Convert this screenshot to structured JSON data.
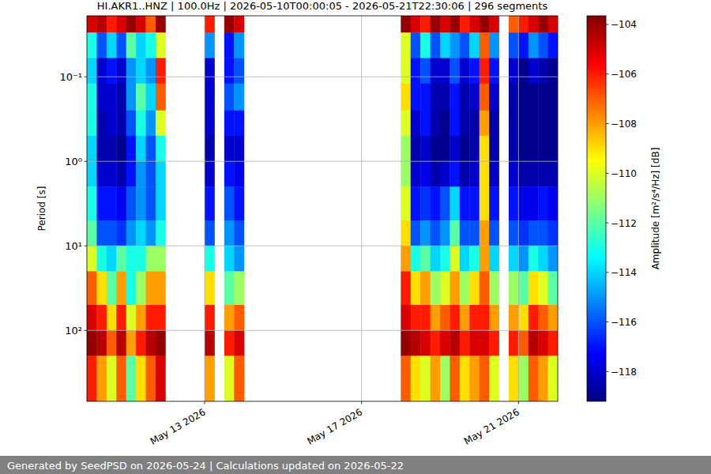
{
  "chart_data": {
    "type": "heatmap",
    "title": "HI.AKR1..HNZ | 100.0Hz | 2026-05-10T00:00:05 - 2026-05-21T22:30:06 | 296 segments",
    "y_label": "Period [s]",
    "x_edges": [
      "2026-05-10T00:00",
      "2026-05-10T06:00",
      "2026-05-10T12:00",
      "2026-05-10T18:00",
      "2026-05-11T00:00",
      "2026-05-11T06:00",
      "2026-05-11T12:00",
      "2026-05-11T18:00",
      "2026-05-12T00:00",
      "2026-05-12T06:00",
      "2026-05-12T12:00",
      "2026-05-12T18:00",
      "2026-05-13T00:00",
      "2026-05-13T06:00",
      "2026-05-13T12:00",
      "2026-05-13T18:00",
      "2026-05-14T00:00",
      "2026-05-14T06:00",
      "2026-05-14T12:00",
      "2026-05-14T18:00",
      "2026-05-15T00:00",
      "2026-05-15T06:00",
      "2026-05-15T12:00",
      "2026-05-15T18:00",
      "2026-05-16T00:00",
      "2026-05-16T06:00",
      "2026-05-16T12:00",
      "2026-05-16T18:00",
      "2026-05-17T00:00",
      "2026-05-17T06:00",
      "2026-05-17T12:00",
      "2026-05-17T18:00",
      "2026-05-18T00:00",
      "2026-05-18T06:00",
      "2026-05-18T12:00",
      "2026-05-18T18:00",
      "2026-05-19T00:00",
      "2026-05-19T06:00",
      "2026-05-19T12:00",
      "2026-05-19T18:00",
      "2026-05-20T00:00",
      "2026-05-20T06:00",
      "2026-05-20T12:00",
      "2026-05-20T18:00",
      "2026-05-21T00:00",
      "2026-05-21T06:00",
      "2026-05-21T12:00",
      "2026-05-21T18:00",
      "2026-05-22T00:00"
    ],
    "y_edges": [
      0.019,
      0.03,
      0.06,
      0.12,
      0.25,
      0.5,
      1,
      2,
      5,
      10,
      20,
      50,
      100,
      200,
      690
    ],
    "cells": [
      [
        -105,
        -104.5,
        -106,
        -105,
        -104,
        -105,
        -107,
        -104,
        null,
        null,
        null,
        null,
        -106,
        null,
        -104,
        -105,
        null,
        null,
        null,
        null,
        null,
        null,
        null,
        null,
        null,
        null,
        null,
        null,
        null,
        null,
        null,
        null,
        -104,
        -105,
        -106,
        -104,
        -105,
        -104,
        -106,
        -105,
        -104,
        -105,
        null,
        -107,
        -106,
        -105,
        -104,
        -105
      ],
      [
        -113,
        -116,
        -114,
        -116,
        -112,
        -114,
        -113,
        -110,
        null,
        null,
        null,
        null,
        -115,
        null,
        -117,
        -115,
        null,
        null,
        null,
        null,
        null,
        null,
        null,
        null,
        null,
        null,
        null,
        null,
        null,
        null,
        null,
        null,
        -110,
        -116,
        -113,
        -116,
        -114,
        -115,
        -116,
        -114,
        -107,
        -115,
        null,
        -116,
        -117,
        -115,
        -116,
        -117
      ],
      [
        -114,
        -118,
        -117,
        -118,
        -115,
        -114,
        -115,
        -106,
        null,
        null,
        null,
        null,
        -118,
        null,
        -117,
        -116,
        null,
        null,
        null,
        null,
        null,
        null,
        null,
        null,
        null,
        null,
        null,
        null,
        null,
        null,
        null,
        null,
        -110,
        -117,
        -116,
        -118,
        -118,
        -116,
        -118,
        -117,
        -106,
        -117,
        null,
        -118,
        -119,
        -118,
        -118.5,
        -119
      ],
      [
        -113,
        -118,
        -118,
        -118.5,
        -115,
        -112,
        -114,
        -107,
        null,
        null,
        null,
        null,
        -118,
        null,
        -116,
        -115,
        null,
        null,
        null,
        null,
        null,
        null,
        null,
        null,
        null,
        null,
        null,
        null,
        null,
        null,
        null,
        null,
        -109,
        -117,
        -117,
        -118.5,
        -118.5,
        -117,
        -118.5,
        -118,
        -107,
        -118,
        null,
        -118.5,
        -119,
        -119,
        -119,
        -119
      ],
      [
        -113,
        -118.5,
        -118,
        -118.5,
        -116,
        -113,
        -115,
        -110,
        null,
        null,
        null,
        null,
        -118,
        null,
        -117,
        -117,
        null,
        null,
        null,
        null,
        null,
        null,
        null,
        null,
        null,
        null,
        null,
        null,
        null,
        null,
        null,
        null,
        -110,
        -118,
        -117,
        -118.5,
        -119,
        -117,
        -118.5,
        -118.5,
        -108,
        -118.5,
        null,
        -118.5,
        -119,
        -119,
        -119,
        -119
      ],
      [
        -114,
        -118.5,
        -118.5,
        -119,
        -117,
        -114,
        -116,
        -113,
        null,
        null,
        null,
        null,
        -118.5,
        null,
        -118,
        -118,
        null,
        null,
        null,
        null,
        null,
        null,
        null,
        null,
        null,
        null,
        null,
        null,
        null,
        null,
        null,
        null,
        -111,
        -118.5,
        -118,
        -119,
        -119,
        -118,
        -119,
        -118.5,
        -109,
        -118.5,
        null,
        -118.5,
        -119,
        -119,
        -119,
        -119
      ],
      [
        -114,
        -118,
        -118,
        -118.5,
        -117,
        -115,
        -116,
        -114,
        null,
        null,
        null,
        null,
        -118,
        null,
        -117,
        -117.5,
        null,
        null,
        null,
        null,
        null,
        null,
        null,
        null,
        null,
        null,
        null,
        null,
        null,
        null,
        null,
        null,
        -111,
        -118,
        -117.5,
        -118.5,
        -118,
        -117,
        -118.5,
        -118,
        -109,
        -118,
        null,
        -118,
        -118.5,
        -118.5,
        -118.5,
        -118.5
      ],
      [
        -113,
        -117,
        -117,
        -117.5,
        -116,
        -115,
        -116,
        -114,
        null,
        null,
        null,
        null,
        -117,
        null,
        -116,
        -117,
        null,
        null,
        null,
        null,
        null,
        null,
        null,
        null,
        null,
        null,
        null,
        null,
        null,
        null,
        null,
        null,
        -110,
        -117,
        -116.5,
        -117,
        -116,
        -114,
        -117,
        -117,
        -109,
        -117,
        null,
        -117,
        -117.5,
        -117.5,
        -117,
        -117.5
      ],
      [
        -112,
        -116,
        -116,
        -116.5,
        -115,
        -114,
        -115,
        -113,
        null,
        null,
        null,
        null,
        -116,
        null,
        -115,
        -116,
        null,
        null,
        null,
        null,
        null,
        null,
        null,
        null,
        null,
        null,
        null,
        null,
        null,
        null,
        null,
        null,
        -109,
        -116,
        -115,
        -116,
        -115,
        -112,
        -116,
        -116,
        -108,
        -116,
        null,
        -116,
        -116.5,
        -116,
        -116,
        -116.5
      ],
      [
        -110,
        -113,
        -114,
        -112,
        -113,
        -113,
        -111,
        -111,
        null,
        null,
        null,
        null,
        -113,
        null,
        -114,
        -115,
        null,
        null,
        null,
        null,
        null,
        null,
        null,
        null,
        null,
        null,
        null,
        null,
        null,
        null,
        null,
        null,
        -108,
        -113,
        -112,
        -114,
        -113,
        -110,
        -114,
        -113,
        -108,
        -114,
        null,
        -114,
        -115,
        -113,
        -114,
        -115
      ],
      [
        -107,
        -109,
        -112,
        -108,
        -113,
        -111,
        -108,
        -108,
        null,
        null,
        null,
        null,
        -109,
        null,
        -112,
        -111,
        null,
        null,
        null,
        null,
        null,
        null,
        null,
        null,
        null,
        null,
        null,
        null,
        null,
        null,
        null,
        null,
        -106,
        -109,
        -108,
        -111,
        -110,
        -108,
        -111,
        -109,
        -107,
        -111,
        null,
        -111,
        -112,
        -109,
        -110,
        -112
      ],
      [
        -105,
        -106,
        -109,
        -106,
        -110,
        -108,
        -106,
        -106,
        null,
        null,
        null,
        null,
        -106,
        null,
        -108,
        -107,
        null,
        null,
        null,
        null,
        null,
        null,
        null,
        null,
        null,
        null,
        null,
        null,
        null,
        null,
        null,
        null,
        -105,
        -106,
        -106,
        -108,
        -107,
        -106,
        -108,
        -106,
        -106,
        -108,
        null,
        -108,
        -109,
        -106,
        -107,
        -108
      ],
      [
        -104,
        -104.5,
        -107,
        -104.5,
        -108,
        -106,
        -104.5,
        -104,
        null,
        null,
        null,
        null,
        -104.5,
        null,
        -106,
        -105,
        null,
        null,
        null,
        null,
        null,
        null,
        null,
        null,
        null,
        null,
        null,
        null,
        null,
        null,
        null,
        null,
        -104,
        -104.5,
        -105,
        -106,
        -105,
        -104.5,
        -106,
        -105,
        -105,
        -106,
        null,
        -106,
        -107,
        -104.5,
        -105,
        -106
      ],
      [
        -106,
        -108,
        -110,
        -107,
        -112,
        -109,
        -107,
        -105,
        null,
        null,
        null,
        null,
        -108,
        null,
        -110,
        -107,
        null,
        null,
        null,
        null,
        null,
        null,
        null,
        null,
        null,
        null,
        null,
        null,
        null,
        null,
        null,
        null,
        -107,
        -109,
        -110,
        -108,
        -111,
        -107,
        -109,
        -108,
        -107,
        -110,
        null,
        -109,
        -111,
        -107,
        -108,
        -110
      ]
    ],
    "xlim": [
      "2026-05-10T00:00",
      "2026-05-22T00:00"
    ],
    "xticks": [
      {
        "value": "2026-05-13T00:00",
        "label": "May 13 2026"
      },
      {
        "value": "2026-05-17T00:00",
        "label": "May 17 2026"
      },
      {
        "value": "2026-05-21T00:00",
        "label": "May 21 2026"
      }
    ],
    "ylim": [
      0.019,
      690
    ],
    "yticks": [
      {
        "value": 0.1,
        "label": "10⁻¹"
      },
      {
        "value": 1,
        "label": "10⁰"
      },
      {
        "value": 10,
        "label": "10¹"
      },
      {
        "value": 100,
        "label": "10²"
      }
    ],
    "log": "y",
    "grid": true,
    "color": "jet",
    "colorbar": {
      "label": "Amplitude [m²/s⁴/Hz] [dB]",
      "lim": [
        -119.2,
        -103.65
      ],
      "ticks": [
        {
          "value": -104,
          "label": "−104"
        },
        {
          "value": -106,
          "label": "−106"
        },
        {
          "value": -108,
          "label": "−108"
        },
        {
          "value": -110,
          "label": "−110"
        },
        {
          "value": -112,
          "label": "−112"
        },
        {
          "value": -114,
          "label": "−114"
        },
        {
          "value": -116,
          "label": "−116"
        },
        {
          "value": -118,
          "label": "−118"
        }
      ]
    }
  },
  "footer": {
    "text": "Generated by SeedPSD on 2026-05-24 | Calculations updated on 2026-05-22"
  }
}
